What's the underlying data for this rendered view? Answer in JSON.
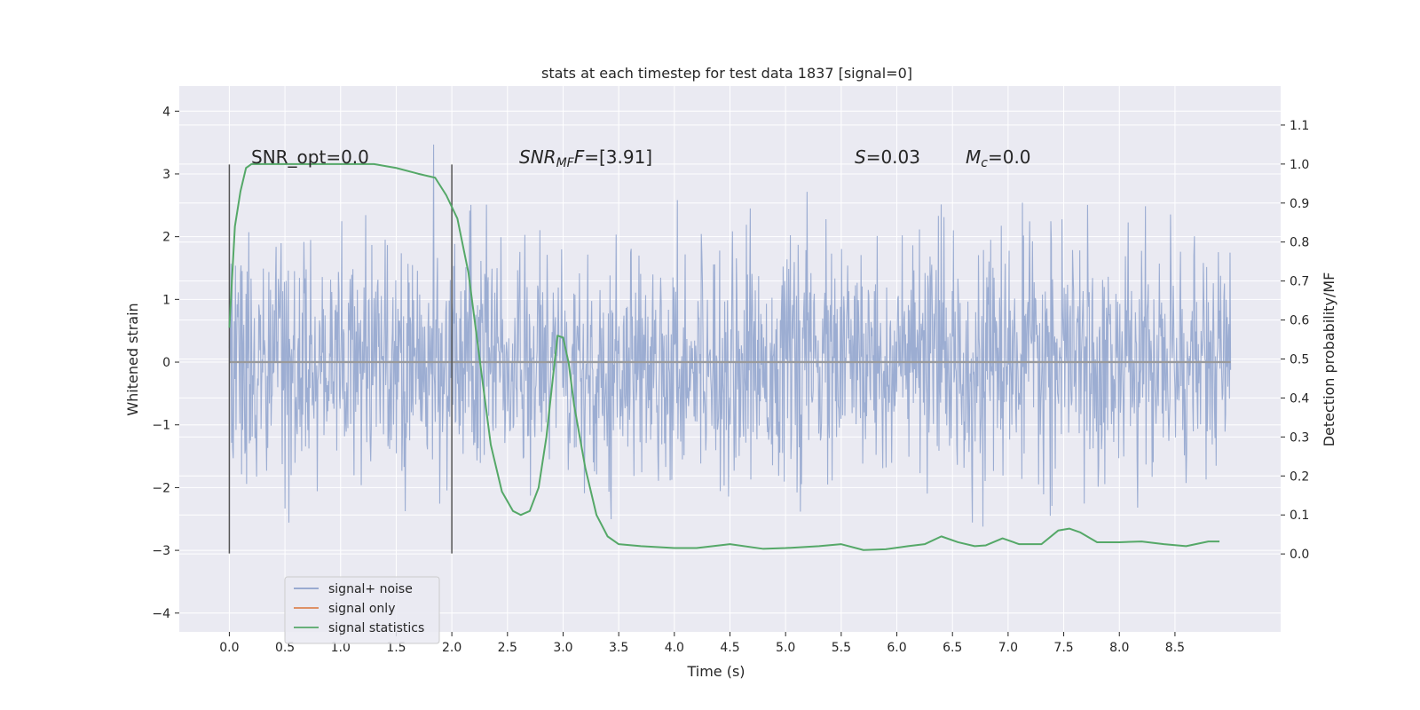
{
  "chart_data": {
    "type": "line",
    "title": "stats at each timestep for test data 1837 [signal=0]",
    "xlabel": "Time (s)",
    "ylabel": "Whitened strain",
    "y2label": "Detection probability/MF",
    "xlim": [
      -0.45,
      9.45
    ],
    "ylim": [
      -4.3,
      4.4
    ],
    "y2lim": [
      -0.2,
      1.2
    ],
    "xticks": [
      0.0,
      0.5,
      1.0,
      1.5,
      2.0,
      2.5,
      3.0,
      3.5,
      4.0,
      4.5,
      5.0,
      5.5,
      6.0,
      6.5,
      7.0,
      7.5,
      8.0,
      8.5
    ],
    "xtick_labels": [
      "0.0",
      "0.5",
      "1.0",
      "1.5",
      "2.0",
      "2.5",
      "3.0",
      "3.5",
      "4.0",
      "4.5",
      "5.0",
      "5.5",
      "6.0",
      "6.5",
      "7.0",
      "7.5",
      "8.0",
      "8.5"
    ],
    "yticks": [
      -4,
      -3,
      -2,
      -1,
      0,
      1,
      2,
      3,
      4
    ],
    "ytick_labels": [
      "−4",
      "−3",
      "−2",
      "−1",
      "0",
      "1",
      "2",
      "3",
      "4"
    ],
    "y2ticks": [
      0.0,
      0.1,
      0.2,
      0.3,
      0.4,
      0.5,
      0.6,
      0.7,
      0.8,
      0.9,
      1.0,
      1.1
    ],
    "y2tick_labels": [
      "0.0",
      "0.1",
      "0.2",
      "0.3",
      "0.4",
      "0.5",
      "0.6",
      "0.7",
      "0.8",
      "0.9",
      "1.0",
      "1.1"
    ],
    "grid": true,
    "legend_position": "lower-left",
    "annotations": {
      "snr_opt": "SNR_opt=0.0",
      "snr_mf_main": "SNR",
      "snr_mf_sub": "MF",
      "snr_mf_value": "=[3.91]",
      "s_main": "S",
      "s_value": "=0.03",
      "mc_main": "M",
      "mc_sub": "c",
      "mc_value": "=0.0"
    },
    "vertical_markers": [
      {
        "x": 0.0,
        "ymin": -3.05,
        "ymax": 3.15
      },
      {
        "x": 2.0,
        "ymin": -3.05,
        "ymax": 3.15
      }
    ],
    "series": [
      {
        "name": "signal+ noise",
        "color": "#8ea2cc",
        "axis": "left",
        "duration": 9.0,
        "sample_count": 1800,
        "envelope_abs_max": 4.0,
        "typical_std": 0.9
      },
      {
        "name": "signal only",
        "color": "#dd8452",
        "axis": "left",
        "x": [
          0.0,
          9.0
        ],
        "y": [
          0.0,
          0.0
        ]
      },
      {
        "name": "signal statistics",
        "color": "#55a868",
        "axis": "right",
        "x": [
          0.0,
          0.05,
          0.1,
          0.15,
          0.2,
          0.3,
          0.5,
          1.0,
          1.3,
          1.5,
          1.7,
          1.85,
          1.95,
          2.05,
          2.15,
          2.25,
          2.35,
          2.45,
          2.55,
          2.62,
          2.7,
          2.78,
          2.85,
          2.9,
          2.95,
          3.0,
          3.05,
          3.1,
          3.2,
          3.3,
          3.4,
          3.5,
          3.7,
          4.0,
          4.2,
          4.5,
          4.8,
          5.0,
          5.3,
          5.5,
          5.7,
          5.9,
          6.1,
          6.25,
          6.4,
          6.55,
          6.7,
          6.8,
          6.95,
          7.1,
          7.3,
          7.45,
          7.55,
          7.65,
          7.8,
          8.0,
          8.2,
          8.4,
          8.6,
          8.8,
          8.9
        ],
        "y": [
          0.58,
          0.84,
          0.93,
          0.99,
          1.0,
          1.0,
          1.0,
          1.0,
          1.0,
          0.99,
          0.975,
          0.965,
          0.92,
          0.86,
          0.72,
          0.5,
          0.28,
          0.16,
          0.11,
          0.1,
          0.11,
          0.17,
          0.3,
          0.43,
          0.56,
          0.555,
          0.49,
          0.38,
          0.22,
          0.1,
          0.045,
          0.025,
          0.02,
          0.015,
          0.015,
          0.025,
          0.013,
          0.015,
          0.02,
          0.025,
          0.01,
          0.012,
          0.02,
          0.025,
          0.045,
          0.03,
          0.02,
          0.022,
          0.04,
          0.025,
          0.025,
          0.06,
          0.065,
          0.055,
          0.03,
          0.03,
          0.032,
          0.025,
          0.02,
          0.032,
          0.032
        ]
      }
    ]
  }
}
